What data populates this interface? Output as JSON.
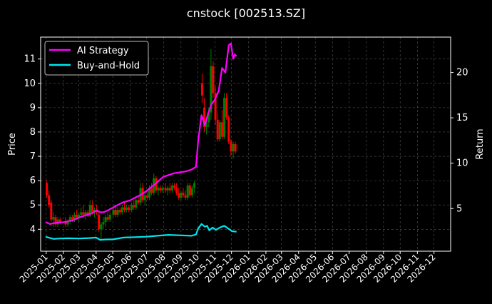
{
  "chart_data": {
    "type": "line",
    "title": "cnstock [002513.SZ]",
    "ylabel_left": "Price",
    "ylabel_right": "Return",
    "ylim_left": [
      3.1,
      11.9
    ],
    "ylim_right": [
      0.3,
      23.9
    ],
    "yticks_left": [
      4,
      5,
      6,
      7,
      8,
      9,
      10,
      11
    ],
    "yticks_right": [
      5,
      10,
      15,
      20
    ],
    "x_range": [
      "2024-12-22",
      "2026-12-31"
    ],
    "xticks": [
      "2025-01",
      "2025-02",
      "2025-03",
      "2025-04",
      "2025-05",
      "2025-06",
      "2025-07",
      "2025-08",
      "2025-09",
      "2025-10",
      "2025-11",
      "2025-12",
      "2026-01",
      "2026-02",
      "2026-03",
      "2026-04",
      "2026-05",
      "2026-06",
      "2026-07",
      "2026-08",
      "2026-09",
      "2026-10",
      "2026-11",
      "2026-12"
    ],
    "grid": true,
    "legend_position": "top-left",
    "colors": {
      "background": "#000000",
      "grid": "#555555",
      "ai_strategy": "#ff00ff",
      "buy_and_hold": "#00e5ee",
      "candle_up": "#008000",
      "candle_down": "#ff0000",
      "text": "#ffffff"
    },
    "series": [
      {
        "name": "AI Strategy",
        "axis": "right",
        "points": [
          [
            "2024-12-31",
            3.5
          ],
          [
            "2025-01-08",
            3.3
          ],
          [
            "2025-01-15",
            3.4
          ],
          [
            "2025-01-22",
            3.45
          ],
          [
            "2025-02-01",
            3.5
          ],
          [
            "2025-02-10",
            3.6
          ],
          [
            "2025-02-18",
            3.7
          ],
          [
            "2025-02-25",
            3.9
          ],
          [
            "2025-03-05",
            4.1
          ],
          [
            "2025-03-15",
            4.3
          ],
          [
            "2025-03-25",
            4.5
          ],
          [
            "2025-04-02",
            4.8
          ],
          [
            "2025-04-08",
            4.6
          ],
          [
            "2025-04-15",
            4.6
          ],
          [
            "2025-04-22",
            4.8
          ],
          [
            "2025-05-01",
            5.1
          ],
          [
            "2025-05-10",
            5.4
          ],
          [
            "2025-05-20",
            5.7
          ],
          [
            "2025-06-01",
            5.9
          ],
          [
            "2025-06-10",
            6.2
          ],
          [
            "2025-06-20",
            6.5
          ],
          [
            "2025-06-30",
            6.9
          ],
          [
            "2025-07-10",
            7.4
          ],
          [
            "2025-07-20",
            7.9
          ],
          [
            "2025-07-31",
            8.5
          ],
          [
            "2025-08-10",
            8.7
          ],
          [
            "2025-08-20",
            8.9
          ],
          [
            "2025-08-31",
            9.0
          ],
          [
            "2025-09-10",
            9.1
          ],
          [
            "2025-09-20",
            9.3
          ],
          [
            "2025-09-28",
            9.6
          ],
          [
            "2025-10-02",
            12.5
          ],
          [
            "2025-10-08",
            15.3
          ],
          [
            "2025-10-14",
            14.2
          ],
          [
            "2025-10-20",
            15.5
          ],
          [
            "2025-10-26",
            16.5
          ],
          [
            "2025-11-01",
            17.0
          ],
          [
            "2025-11-08",
            18.0
          ],
          [
            "2025-11-14",
            20.5
          ],
          [
            "2025-11-20",
            20.0
          ],
          [
            "2025-11-26",
            23.0
          ],
          [
            "2025-11-30",
            23.2
          ],
          [
            "2025-12-04",
            21.5
          ],
          [
            "2025-12-07",
            22.0
          ],
          [
            "2025-12-10",
            21.8
          ]
        ]
      },
      {
        "name": "Buy-and-Hold",
        "axis": "right",
        "points": [
          [
            "2024-12-31",
            1.9
          ],
          [
            "2025-01-08",
            1.75
          ],
          [
            "2025-01-15",
            1.65
          ],
          [
            "2025-01-25",
            1.7
          ],
          [
            "2025-02-10",
            1.72
          ],
          [
            "2025-03-01",
            1.7
          ],
          [
            "2025-03-20",
            1.75
          ],
          [
            "2025-04-01",
            1.8
          ],
          [
            "2025-04-08",
            1.55
          ],
          [
            "2025-04-20",
            1.6
          ],
          [
            "2025-05-01",
            1.6
          ],
          [
            "2025-05-20",
            1.8
          ],
          [
            "2025-06-10",
            1.85
          ],
          [
            "2025-07-01",
            1.9
          ],
          [
            "2025-07-20",
            2.0
          ],
          [
            "2025-08-10",
            2.1
          ],
          [
            "2025-08-31",
            2.05
          ],
          [
            "2025-09-20",
            2.0
          ],
          [
            "2025-09-28",
            2.15
          ],
          [
            "2025-10-02",
            2.8
          ],
          [
            "2025-10-08",
            3.3
          ],
          [
            "2025-10-14",
            3.0
          ],
          [
            "2025-10-18",
            3.1
          ],
          [
            "2025-10-22",
            2.6
          ],
          [
            "2025-10-28",
            2.9
          ],
          [
            "2025-11-03",
            2.65
          ],
          [
            "2025-11-10",
            2.9
          ],
          [
            "2025-11-18",
            3.1
          ],
          [
            "2025-11-25",
            2.8
          ],
          [
            "2025-12-02",
            2.5
          ],
          [
            "2025-12-10",
            2.45
          ]
        ]
      }
    ],
    "candles": [
      [
        "2025-01-02",
        5.9,
        6.0,
        5.3,
        5.4
      ],
      [
        "2025-01-06",
        5.4,
        5.6,
        4.9,
        5.0
      ],
      [
        "2025-01-10",
        5.1,
        5.2,
        4.3,
        4.4
      ],
      [
        "2025-01-14",
        4.4,
        4.7,
        4.1,
        4.5
      ],
      [
        "2025-01-18",
        4.5,
        4.6,
        4.1,
        4.2
      ],
      [
        "2025-01-22",
        4.2,
        4.5,
        4.1,
        4.4
      ],
      [
        "2025-01-26",
        4.4,
        4.5,
        4.2,
        4.3
      ],
      [
        "2025-02-05",
        4.3,
        4.5,
        4.1,
        4.2
      ],
      [
        "2025-02-09",
        4.2,
        4.4,
        4.1,
        4.35
      ],
      [
        "2025-02-13",
        4.35,
        4.6,
        4.2,
        4.5
      ],
      [
        "2025-02-17",
        4.5,
        4.6,
        4.3,
        4.4
      ],
      [
        "2025-02-21",
        4.4,
        4.7,
        4.3,
        4.6
      ],
      [
        "2025-02-25",
        4.6,
        4.8,
        4.4,
        4.5
      ],
      [
        "2025-03-01",
        4.5,
        4.7,
        4.3,
        4.6
      ],
      [
        "2025-03-05",
        4.6,
        4.9,
        4.5,
        4.7
      ],
      [
        "2025-03-09",
        4.7,
        5.0,
        4.5,
        4.6
      ],
      [
        "2025-03-13",
        4.6,
        4.8,
        4.4,
        4.7
      ],
      [
        "2025-03-17",
        4.7,
        4.8,
        4.5,
        4.55
      ],
      [
        "2025-03-21",
        4.55,
        5.2,
        4.5,
        5.0
      ],
      [
        "2025-03-25",
        5.0,
        5.2,
        4.6,
        4.7
      ],
      [
        "2025-03-29",
        4.7,
        4.9,
        4.5,
        4.8
      ],
      [
        "2025-04-02",
        4.8,
        5.0,
        4.6,
        4.7
      ],
      [
        "2025-04-06",
        4.6,
        4.7,
        3.9,
        4.0
      ],
      [
        "2025-04-10",
        4.0,
        4.3,
        3.6,
        4.2
      ],
      [
        "2025-04-14",
        4.2,
        4.5,
        4.0,
        4.3
      ],
      [
        "2025-04-18",
        4.3,
        4.6,
        4.1,
        4.5
      ],
      [
        "2025-04-22",
        4.5,
        4.7,
        4.3,
        4.4
      ],
      [
        "2025-04-26",
        4.4,
        4.7,
        4.3,
        4.6
      ],
      [
        "2025-05-02",
        4.6,
        4.9,
        4.5,
        4.8
      ],
      [
        "2025-05-06",
        4.8,
        5.0,
        4.5,
        4.6
      ],
      [
        "2025-05-10",
        4.6,
        4.9,
        4.5,
        4.8
      ],
      [
        "2025-05-14",
        4.8,
        4.9,
        4.6,
        4.7
      ],
      [
        "2025-05-18",
        4.7,
        5.0,
        4.6,
        4.9
      ],
      [
        "2025-05-22",
        4.9,
        5.1,
        4.7,
        4.8
      ],
      [
        "2025-05-26",
        4.8,
        5.0,
        4.7,
        4.9
      ],
      [
        "2025-05-30",
        4.9,
        5.0,
        4.7,
        4.8
      ],
      [
        "2025-06-04",
        4.8,
        5.1,
        4.7,
        5.0
      ],
      [
        "2025-06-08",
        5.0,
        5.2,
        4.8,
        4.9
      ],
      [
        "2025-06-12",
        4.9,
        5.3,
        4.8,
        5.2
      ],
      [
        "2025-06-16",
        5.2,
        5.4,
        5.0,
        5.1
      ],
      [
        "2025-06-20",
        5.1,
        5.9,
        5.0,
        5.7
      ],
      [
        "2025-06-24",
        5.7,
        5.9,
        5.1,
        5.2
      ],
      [
        "2025-06-28",
        5.2,
        5.5,
        5.0,
        5.4
      ],
      [
        "2025-07-02",
        5.4,
        5.6,
        5.2,
        5.3
      ],
      [
        "2025-07-06",
        5.3,
        5.8,
        5.2,
        5.7
      ],
      [
        "2025-07-10",
        5.7,
        5.9,
        5.4,
        5.5
      ],
      [
        "2025-07-14",
        5.5,
        6.3,
        5.4,
        6.1
      ],
      [
        "2025-07-18",
        6.1,
        6.2,
        5.5,
        5.6
      ],
      [
        "2025-07-22",
        5.6,
        5.8,
        5.4,
        5.7
      ],
      [
        "2025-07-26",
        5.7,
        5.8,
        5.5,
        5.6
      ],
      [
        "2025-07-30",
        5.6,
        5.8,
        5.5,
        5.7
      ],
      [
        "2025-08-04",
        5.7,
        5.9,
        5.5,
        5.6
      ],
      [
        "2025-08-08",
        5.6,
        5.8,
        5.4,
        5.7
      ],
      [
        "2025-08-12",
        5.7,
        5.9,
        5.5,
        5.6
      ],
      [
        "2025-08-16",
        5.6,
        5.9,
        5.5,
        5.8
      ],
      [
        "2025-08-20",
        5.8,
        5.9,
        5.6,
        5.7
      ],
      [
        "2025-08-24",
        5.7,
        5.9,
        5.4,
        5.5
      ],
      [
        "2025-08-28",
        5.5,
        5.7,
        5.2,
        5.3
      ],
      [
        "2025-09-01",
        5.3,
        5.6,
        5.2,
        5.5
      ],
      [
        "2025-09-05",
        5.5,
        5.7,
        5.3,
        5.4
      ],
      [
        "2025-09-09",
        5.4,
        5.6,
        5.2,
        5.3
      ],
      [
        "2025-09-13",
        5.3,
        5.9,
        5.2,
        5.8
      ],
      [
        "2025-09-17",
        5.8,
        5.9,
        5.3,
        5.4
      ],
      [
        "2025-09-21",
        5.4,
        5.8,
        5.3,
        5.7
      ],
      [
        "2025-09-25",
        5.7,
        6.0,
        5.5,
        5.9
      ],
      [
        "2025-10-09",
        10.0,
        10.4,
        9.2,
        9.5
      ],
      [
        "2025-10-13",
        9.0,
        9.4,
        8.0,
        8.2
      ],
      [
        "2025-10-17",
        8.2,
        8.6,
        7.9,
        8.4
      ],
      [
        "2025-10-21",
        8.4,
        9.0,
        8.2,
        8.8
      ],
      [
        "2025-10-25",
        8.8,
        11.4,
        8.5,
        10.7
      ],
      [
        "2025-10-29",
        10.7,
        10.9,
        9.4,
        9.6
      ],
      [
        "2025-11-02",
        9.6,
        9.9,
        8.3,
        8.5
      ],
      [
        "2025-11-06",
        8.5,
        8.8,
        7.6,
        7.7
      ],
      [
        "2025-11-10",
        7.7,
        8.5,
        7.6,
        8.4
      ],
      [
        "2025-11-14",
        8.4,
        8.9,
        7.7,
        7.8
      ],
      [
        "2025-11-18",
        7.8,
        9.6,
        7.7,
        9.4
      ],
      [
        "2025-11-22",
        9.4,
        9.6,
        8.5,
        8.6
      ],
      [
        "2025-11-26",
        8.6,
        8.7,
        7.5,
        7.6
      ],
      [
        "2025-11-30",
        7.6,
        7.7,
        7.0,
        7.2
      ],
      [
        "2025-12-04",
        7.2,
        7.6,
        6.9,
        7.5
      ],
      [
        "2025-12-08",
        7.5,
        7.6,
        7.1,
        7.2
      ]
    ]
  }
}
